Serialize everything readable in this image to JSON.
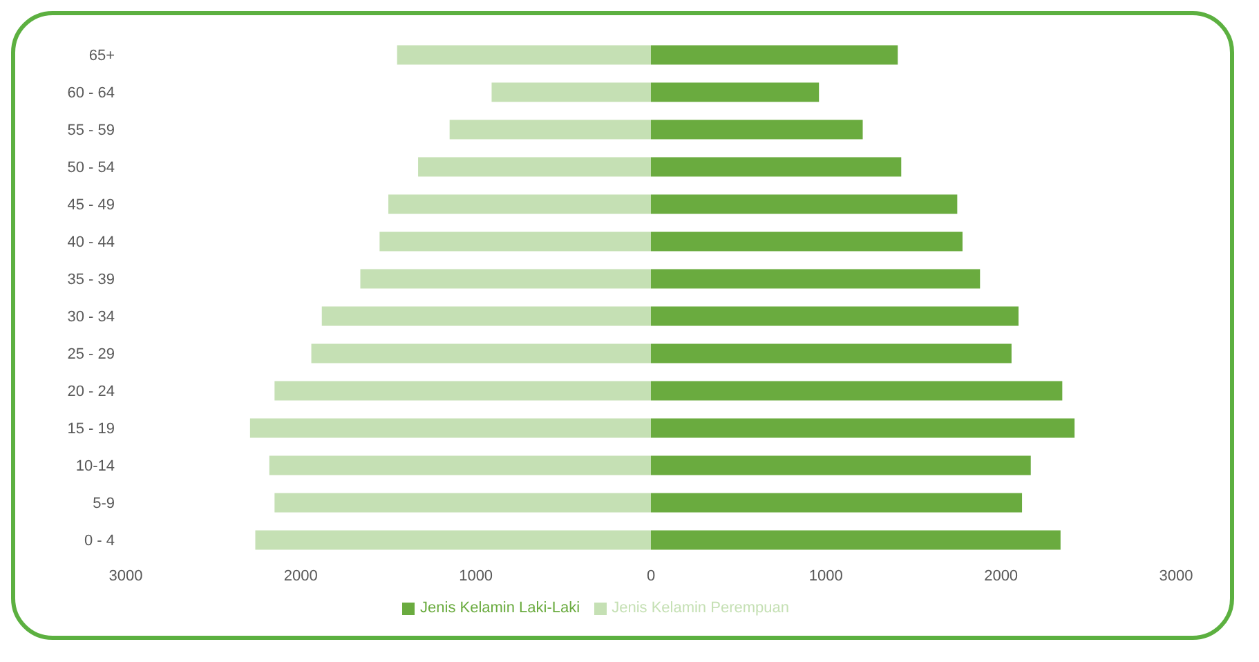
{
  "chart_data": {
    "type": "bar",
    "orientation": "horizontal",
    "stacked": true,
    "categories": [
      "65+",
      "60 - 64",
      "55 - 59",
      "50 - 54",
      "45 - 49",
      "40 - 44",
      "35 - 39",
      "30 - 34",
      "25 - 29",
      "20 - 24",
      "15 - 19",
      "10-14",
      "5-9",
      "0 - 4"
    ],
    "series": [
      {
        "name": "Jenis Kelamin Perempuan",
        "color": "#c5e0b4",
        "values": [
          -1450,
          -910,
          -1150,
          -1330,
          -1500,
          -1550,
          -1660,
          -1880,
          -1940,
          -2150,
          -2290,
          -2180,
          -2150,
          -2260
        ]
      },
      {
        "name": "Jenis Kelamin Laki-Laki",
        "color": "#6aab3f",
        "values": [
          1410,
          960,
          1210,
          1430,
          1750,
          1780,
          1880,
          2100,
          2060,
          2350,
          2420,
          2170,
          2120,
          2340
        ]
      }
    ],
    "xlim": [
      -3000,
      3000
    ],
    "xticks": [
      {
        "value": -3000,
        "label": "3000"
      },
      {
        "value": -2000,
        "label": "2000"
      },
      {
        "value": -1000,
        "label": "1000"
      },
      0,
      1000,
      2000,
      3000
    ],
    "grid": false,
    "legend": "bottom"
  }
}
